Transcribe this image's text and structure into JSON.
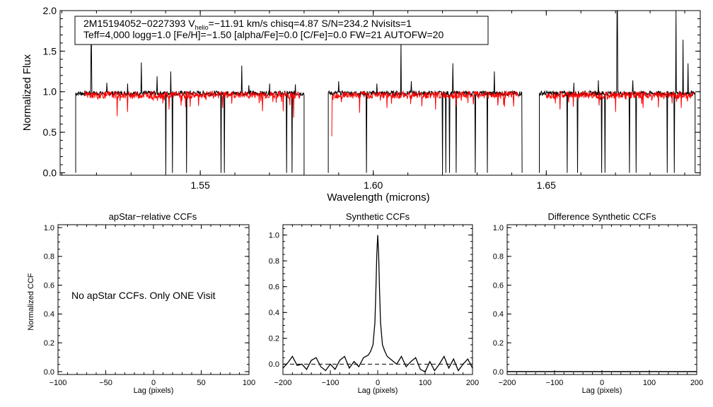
{
  "chart_data": [
    {
      "type": "line",
      "id": "spectrum",
      "ylabel": "Normalized Flux",
      "xlabel": "Wavelength (microns)",
      "xlim": [
        1.5095,
        1.6945
      ],
      "ylim": [
        -0.03,
        2.0
      ],
      "xticks": [
        1.55,
        1.6,
        1.65
      ],
      "xtick_labels": [
        "1.55",
        "1.60",
        "1.65"
      ],
      "yticks": [
        0.0,
        0.5,
        1.0,
        1.5,
        2.0
      ],
      "ytick_labels": [
        "0.0",
        "0.5",
        "1.0",
        "1.5",
        "2.0"
      ],
      "annotation": {
        "line1_prefix": "2M15194052−0227393  V",
        "line1_sub": "helio",
        "line1_suffix": "=−11.91 km/s  chisq=4.87  S/N=234.2  Nvisits=1",
        "line2": "Teff=4,000 logg=1.0 [Fe/H]=−1.50 [alpha/Fe]=0.0 [C/Fe]=0.0 FW=21 AUTOFW=20"
      },
      "series": [
        {
          "color": "#000000",
          "segments": [
            [
              1.514,
              1.58
            ],
            [
              1.587,
              1.643
            ],
            [
              1.648,
              1.693
            ]
          ],
          "level": 0.98,
          "spikes_up": [
            [
              1.5185,
              1.58
            ],
            [
              1.523,
              1.11
            ],
            [
              1.529,
              1.1
            ],
            [
              1.533,
              1.36
            ],
            [
              1.5375,
              1.19
            ],
            [
              1.5415,
              1.25
            ],
            [
              1.546,
              1.1
            ],
            [
              1.556,
              1.08
            ],
            [
              1.562,
              1.32
            ],
            [
              1.564,
              1.08
            ],
            [
              1.57,
              1.1
            ],
            [
              1.5775,
              1.09
            ],
            [
              1.59,
              1.13
            ],
            [
              1.601,
              1.1
            ],
            [
              1.608,
              1.62
            ],
            [
              1.611,
              1.13
            ],
            [
              1.623,
              1.35
            ],
            [
              1.635,
              1.25
            ],
            [
              1.658,
              1.11
            ],
            [
              1.665,
              1.14
            ],
            [
              1.675,
              1.14
            ],
            [
              1.685,
              1.11
            ],
            [
              1.6895,
              1.64
            ],
            [
              1.691,
              1.35
            ]
          ],
          "drops": [
            [
              1.54,
              0.0
            ],
            [
              1.542,
              0.0
            ],
            [
              1.546,
              0.0
            ],
            [
              1.556,
              0.0
            ],
            [
              1.557,
              0.0
            ],
            [
              1.575,
              0.0
            ],
            [
              1.5765,
              0.0
            ],
            [
              1.598,
              0.0
            ],
            [
              1.62,
              0.0
            ],
            [
              1.621,
              0.0
            ],
            [
              1.622,
              0.0
            ],
            [
              1.624,
              0.0
            ],
            [
              1.6295,
              0.0
            ],
            [
              1.633,
              0.0
            ],
            [
              1.656,
              0.0
            ],
            [
              1.659,
              0.0
            ],
            [
              1.666,
              0.0
            ],
            [
              1.667,
              0.0
            ],
            [
              1.674,
              0.0
            ],
            [
              1.676,
              0.0
            ],
            [
              1.685,
              0.0
            ],
            [
              1.687,
              0.0
            ]
          ],
          "tall_spikes": [
            [
              1.6705,
              2.0
            ],
            [
              1.6875,
              2.0
            ]
          ]
        },
        {
          "color": "#ff0000",
          "segments": [
            [
              1.5165,
              1.579
            ],
            [
              1.588,
              1.642
            ],
            [
              1.65,
              1.6925
            ]
          ],
          "level": 0.96,
          "dips": [
            [
              1.526,
              0.7
            ],
            [
              1.529,
              0.75
            ],
            [
              1.541,
              0.78
            ],
            [
              1.5565,
              0.8
            ],
            [
              1.568,
              0.76
            ],
            [
              1.574,
              0.76
            ],
            [
              1.577,
              0.68
            ],
            [
              1.588,
              0.45
            ],
            [
              1.596,
              0.74
            ],
            [
              1.604,
              0.8
            ],
            [
              1.618,
              0.78
            ],
            [
              1.636,
              0.83
            ],
            [
              1.654,
              0.78
            ],
            [
              1.67,
              0.75
            ],
            [
              1.678,
              0.8
            ],
            [
              1.689,
              0.8
            ]
          ]
        }
      ]
    },
    {
      "type": "line",
      "id": "apstar_ccf",
      "title": "apStar−relative CCFs",
      "xlabel": "Lag (pixels)",
      "ylabel": "Normalized CCF",
      "xlim": [
        -100,
        100
      ],
      "ylim": [
        -0.02,
        1.02
      ],
      "xticks": [
        -100,
        -50,
        0,
        50,
        100
      ],
      "xtick_labels": [
        "−100",
        "−50",
        "0",
        "50",
        "100"
      ],
      "yticks": [
        0.0,
        0.2,
        0.4,
        0.6,
        0.8,
        1.0
      ],
      "ytick_labels": [
        "0.0",
        "0.2",
        "0.4",
        "0.6",
        "0.8",
        "1.0"
      ],
      "annotation": "No apStar CCFs.  Only ONE Visit",
      "series": []
    },
    {
      "type": "line",
      "id": "synthetic_ccf",
      "title": "Synthetic CCFs",
      "xlabel": "Lag (pixels)",
      "xlim": [
        -200,
        200
      ],
      "ylim": [
        -0.08,
        1.08
      ],
      "xticks": [
        -200,
        -100,
        0,
        100,
        200
      ],
      "xtick_labels": [
        "−200",
        "−100",
        "0",
        "100",
        "200"
      ],
      "yticks": [
        0.0,
        0.2,
        0.4,
        0.6,
        0.8,
        1.0
      ],
      "ytick_labels": [
        "0.0",
        "0.2",
        "0.4",
        "0.6",
        "0.8",
        "1.0"
      ],
      "baseline": 0.0,
      "series": [
        {
          "color": "#000000",
          "x": [
            -200,
            -190,
            -180,
            -170,
            -160,
            -150,
            -140,
            -130,
            -120,
            -110,
            -100,
            -90,
            -80,
            -70,
            -60,
            -50,
            -40,
            -30,
            -20,
            -15,
            -10,
            -6,
            -4,
            -2,
            0,
            2,
            4,
            6,
            10,
            15,
            20,
            30,
            40,
            50,
            60,
            70,
            80,
            90,
            100,
            110,
            120,
            130,
            140,
            150,
            160,
            170,
            180,
            190,
            200
          ],
          "y": [
            -0.03,
            0.01,
            0.06,
            -0.01,
            0.0,
            -0.04,
            0.03,
            0.05,
            -0.02,
            -0.05,
            0.0,
            -0.04,
            0.03,
            0.06,
            -0.03,
            0.02,
            -0.02,
            0.05,
            0.07,
            0.1,
            0.15,
            0.32,
            0.55,
            0.85,
            1.0,
            0.85,
            0.55,
            0.32,
            0.15,
            0.1,
            0.06,
            0.03,
            0.0,
            0.06,
            -0.02,
            0.02,
            0.05,
            -0.04,
            -0.06,
            0.02,
            -0.05,
            0.0,
            0.06,
            -0.03,
            0.04,
            -0.05,
            0.0,
            0.04,
            -0.03
          ]
        }
      ]
    },
    {
      "type": "line",
      "id": "difference_ccf",
      "title": "Difference Synthetic CCFs",
      "xlabel": "Lag (pixels)",
      "xlim": [
        -200,
        200
      ],
      "ylim": [
        -0.02,
        1.02
      ],
      "xticks": [
        -200,
        -100,
        0,
        100,
        200
      ],
      "xtick_labels": [
        "−200",
        "−100",
        "0",
        "100",
        "200"
      ],
      "yticks": [
        0.0,
        0.2,
        0.4,
        0.6,
        0.8,
        1.0
      ],
      "ytick_labels": [
        "0.0",
        "0.2",
        "0.4",
        "0.6",
        "0.8",
        "1.0"
      ],
      "series": [
        {
          "color": "#000000",
          "x": [
            -200,
            200
          ],
          "y": [
            0.0,
            0.0
          ]
        }
      ]
    }
  ]
}
